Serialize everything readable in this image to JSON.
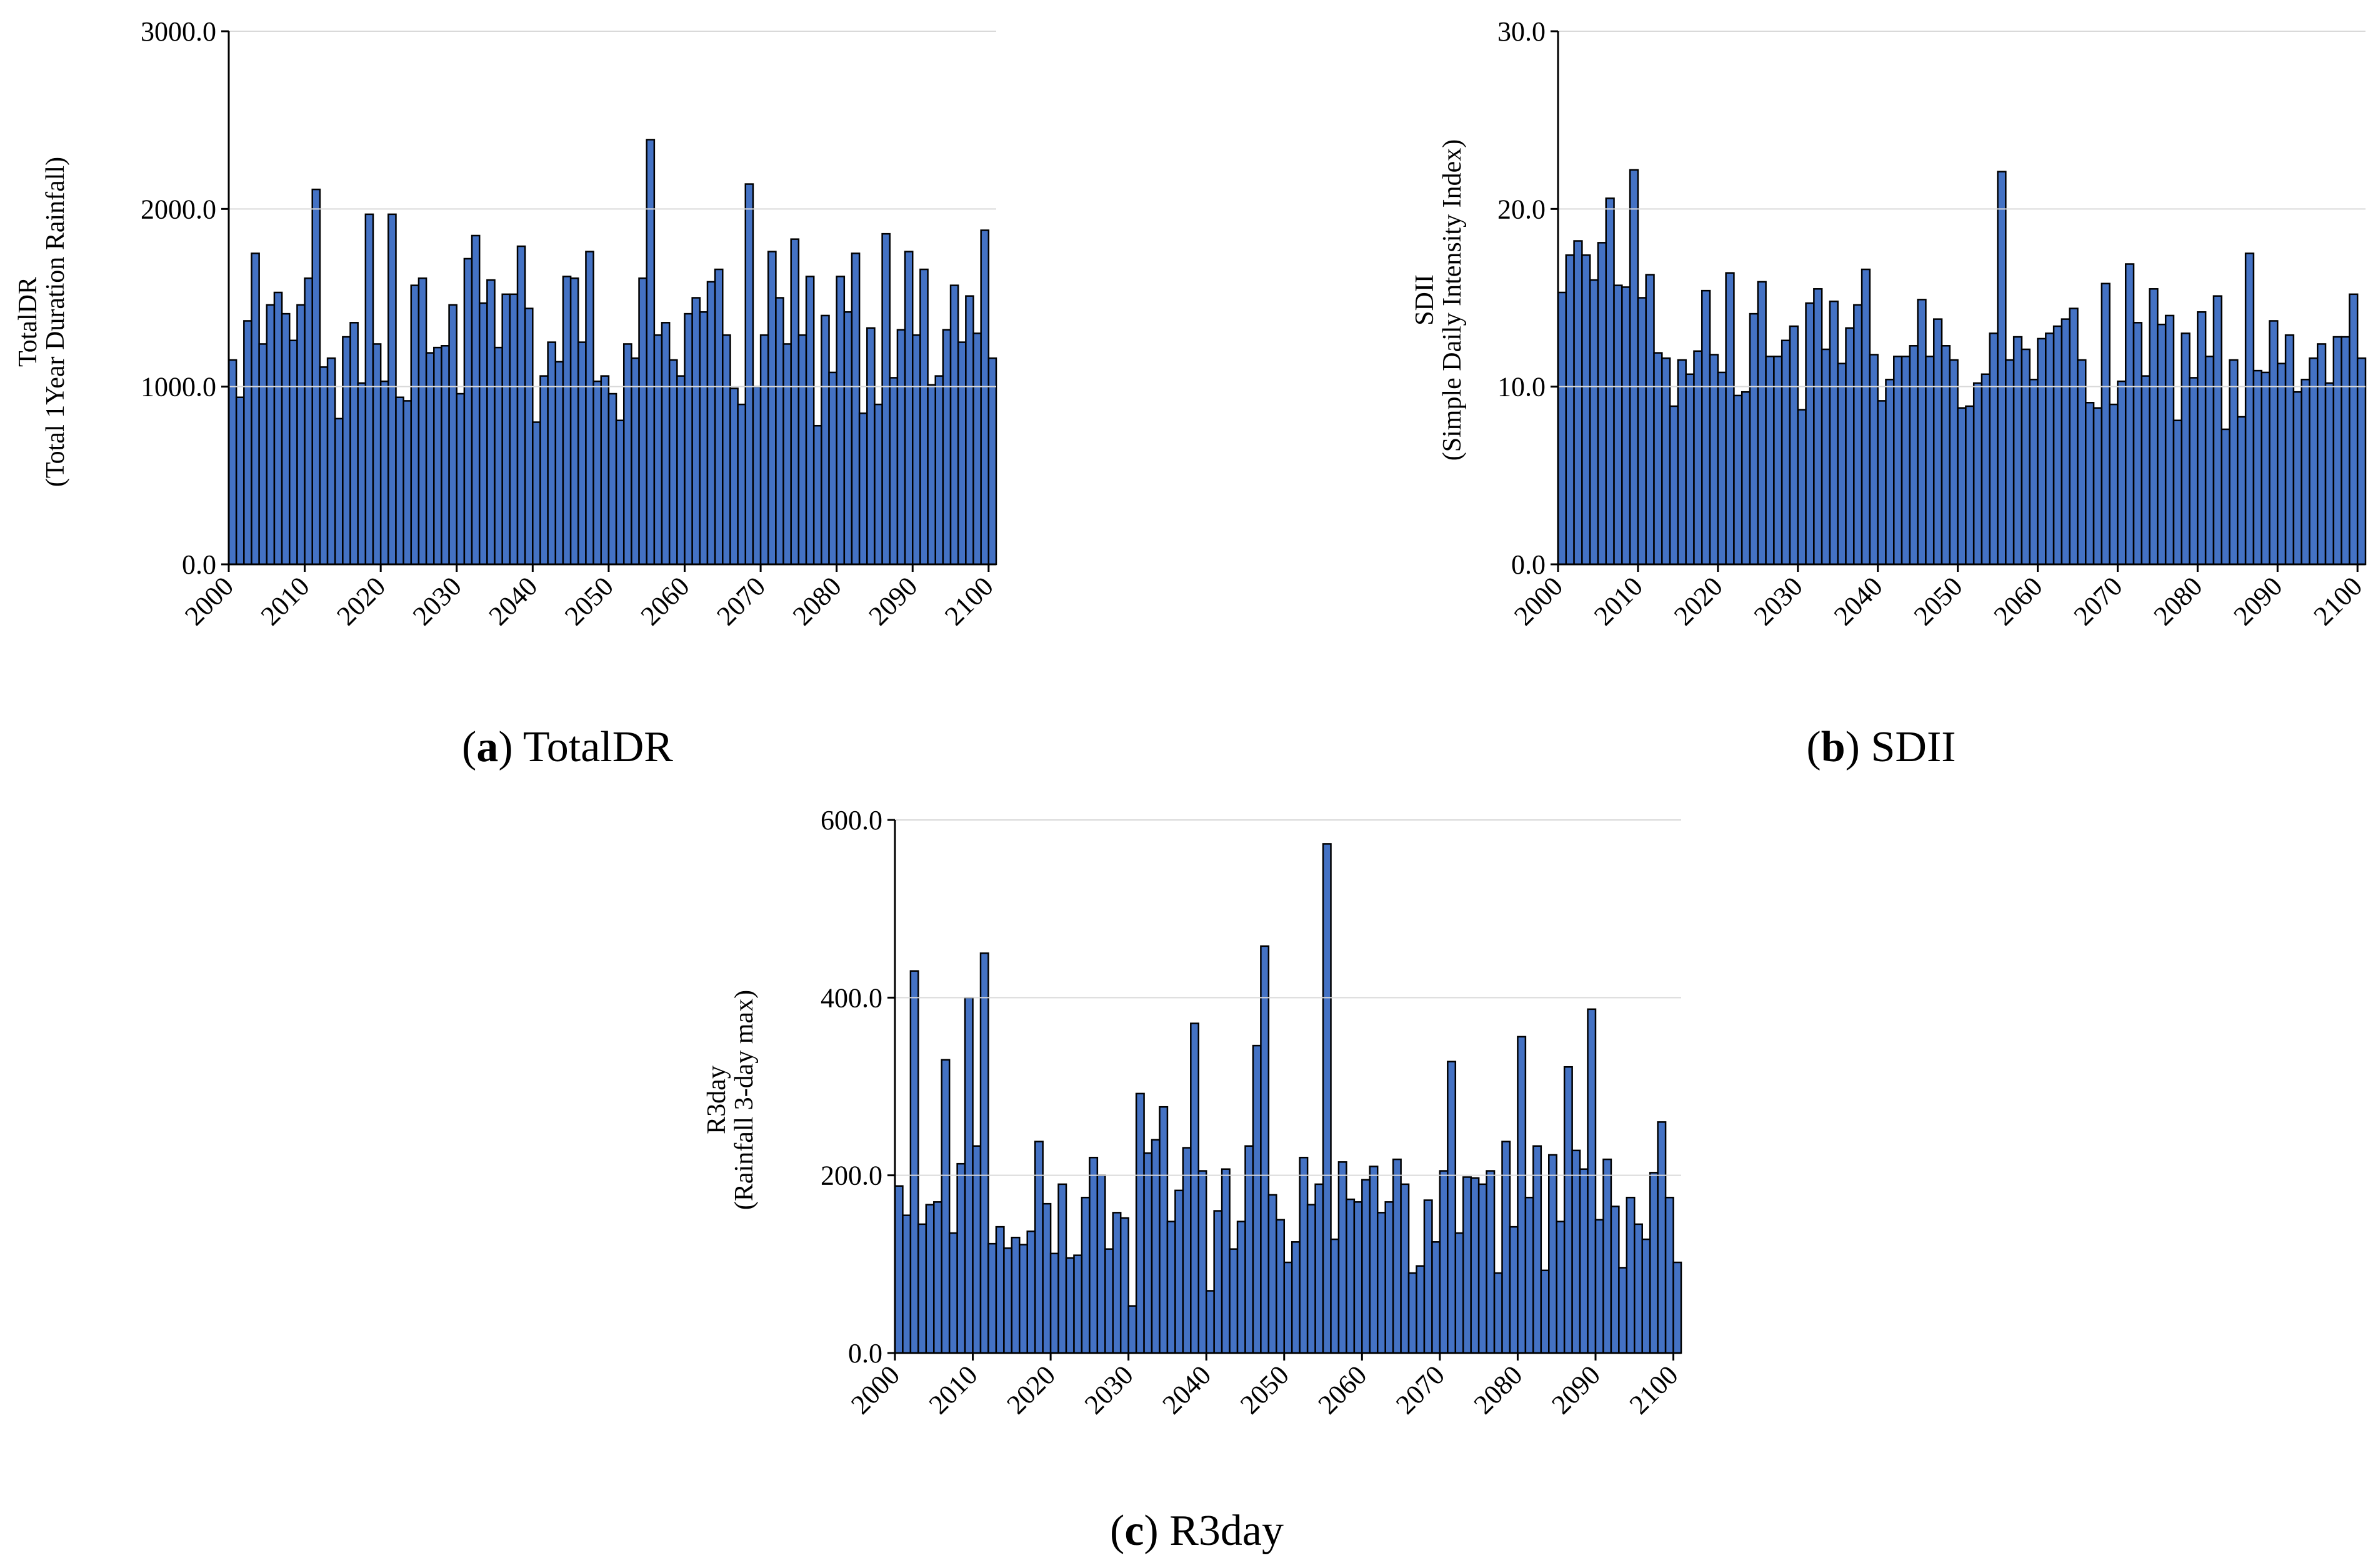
{
  "colors": {
    "bar_fill": "#4472c4",
    "bar_stroke": "#000000",
    "gridline": "#d9d9d9",
    "axis": "#000000"
  },
  "chart_data": [
    {
      "id": "a",
      "type": "bar",
      "caption_letter": "a",
      "caption_text": "TotalDR",
      "ylabel_line1": "TotalDR",
      "ylabel_line2": "(Total 1Year Duration Rainfall)",
      "ylim": [
        0,
        3000
      ],
      "yticks": [
        0,
        1000,
        2000,
        3000
      ],
      "ytick_labels": [
        "0.0",
        "1000.0",
        "2000.0",
        "3000.0"
      ],
      "xtick_labels": [
        "2000",
        "2010",
        "2020",
        "2030",
        "2040",
        "2050",
        "2060",
        "2070",
        "2080",
        "2090",
        "2100"
      ],
      "x_start": 2000,
      "values": [
        1150,
        940,
        1370,
        1750,
        1240,
        1460,
        1530,
        1410,
        1260,
        1460,
        1610,
        2110,
        1110,
        1160,
        820,
        1280,
        1360,
        1020,
        1970,
        1240,
        1030,
        1970,
        940,
        920,
        1570,
        1610,
        1190,
        1220,
        1230,
        1460,
        960,
        1720,
        1850,
        1470,
        1600,
        1220,
        1520,
        1520,
        1790,
        1440,
        800,
        1060,
        1250,
        1140,
        1620,
        1610,
        1250,
        1760,
        1030,
        1060,
        960,
        810,
        1240,
        1160,
        1610,
        2390,
        1290,
        1360,
        1150,
        1060,
        1410,
        1500,
        1420,
        1590,
        1660,
        1290,
        990,
        900,
        2140,
        1000,
        1290,
        1760,
        1500,
        1240,
        1830,
        1290,
        1620,
        780,
        1400,
        1080,
        1620,
        1420,
        1750,
        850,
        1330,
        900,
        1860,
        1050,
        1320,
        1760,
        1290,
        1660,
        1010,
        1060,
        1320,
        1570,
        1250,
        1510,
        1300,
        1880,
        1160
      ]
    },
    {
      "id": "b",
      "type": "bar",
      "caption_letter": "b",
      "caption_text": "SDII",
      "ylabel_line1": "SDII",
      "ylabel_line2": "(Simple Daily Intensity Index)",
      "ylim": [
        0,
        30
      ],
      "yticks": [
        0,
        10,
        20,
        30
      ],
      "ytick_labels": [
        "0.0",
        "10.0",
        "20.0",
        "30.0"
      ],
      "xtick_labels": [
        "2000",
        "2010",
        "2020",
        "2030",
        "2040",
        "2050",
        "2060",
        "2070",
        "2080",
        "2090",
        "2100"
      ],
      "x_start": 2000,
      "values": [
        15.3,
        17.4,
        18.2,
        17.4,
        16.0,
        18.1,
        20.6,
        15.7,
        15.6,
        22.2,
        15.0,
        16.3,
        11.9,
        11.6,
        8.9,
        11.5,
        10.7,
        12.0,
        15.4,
        11.8,
        10.8,
        16.4,
        9.5,
        9.7,
        14.1,
        15.9,
        11.7,
        11.7,
        12.6,
        13.4,
        8.7,
        14.7,
        15.5,
        12.1,
        14.8,
        11.3,
        13.3,
        14.6,
        16.6,
        11.8,
        9.2,
        10.4,
        11.7,
        11.7,
        12.3,
        14.9,
        11.7,
        13.8,
        12.3,
        11.5,
        8.8,
        8.9,
        10.2,
        10.7,
        13.0,
        22.1,
        11.5,
        12.8,
        12.1,
        10.4,
        12.7,
        13.0,
        13.4,
        13.8,
        14.4,
        11.5,
        9.1,
        8.8,
        15.8,
        9.0,
        10.3,
        16.9,
        13.6,
        10.6,
        15.5,
        13.5,
        14.0,
        8.1,
        13.0,
        10.5,
        14.2,
        11.7,
        15.1,
        7.6,
        11.5,
        8.3,
        17.5,
        10.9,
        10.8,
        13.7,
        11.3,
        12.9,
        9.7,
        10.4,
        11.6,
        12.4,
        10.2,
        12.8,
        12.8,
        15.2,
        11.6
      ]
    },
    {
      "id": "c",
      "type": "bar",
      "caption_letter": "c",
      "caption_text": "R3day",
      "ylabel_line1": "R3day",
      "ylabel_line2": "(Rainfall 3-day max)",
      "ylim": [
        0,
        600
      ],
      "yticks": [
        0,
        200,
        400,
        600
      ],
      "ytick_labels": [
        "0.0",
        "200.0",
        "400.0",
        "600.0"
      ],
      "xtick_labels": [
        "2000",
        "2010",
        "2020",
        "2030",
        "2040",
        "2050",
        "2060",
        "2070",
        "2080",
        "2090",
        "2100"
      ],
      "x_start": 2000,
      "values": [
        188,
        155,
        430,
        145,
        167,
        170,
        330,
        135,
        213,
        400,
        233,
        450,
        123,
        142,
        118,
        130,
        122,
        137,
        238,
        168,
        112,
        190,
        107,
        110,
        175,
        220,
        200,
        117,
        158,
        152,
        53,
        292,
        225,
        240,
        277,
        148,
        183,
        231,
        371,
        205,
        70,
        160,
        207,
        117,
        148,
        233,
        346,
        458,
        178,
        150,
        102,
        125,
        220,
        167,
        190,
        573,
        128,
        215,
        173,
        170,
        195,
        210,
        158,
        170,
        218,
        190,
        90,
        98,
        172,
        125,
        205,
        328,
        135,
        198,
        197,
        190,
        205,
        90,
        238,
        142,
        356,
        175,
        233,
        93,
        223,
        148,
        322,
        228,
        207,
        387,
        150,
        218,
        165,
        96,
        175,
        145,
        128,
        203,
        260,
        175,
        102
      ]
    }
  ]
}
